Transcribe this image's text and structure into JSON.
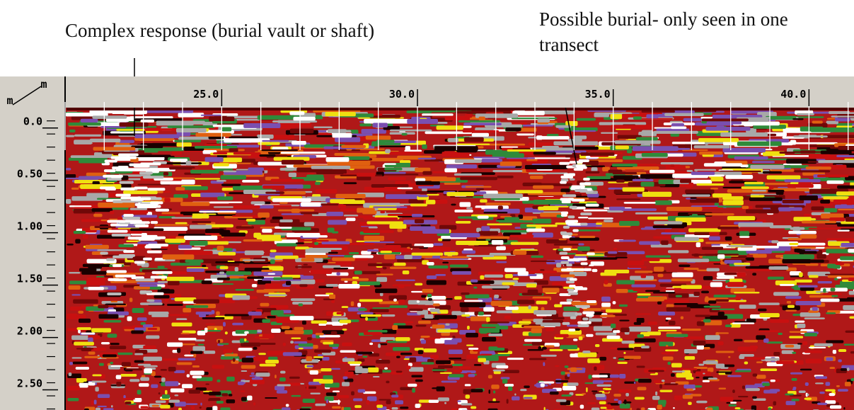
{
  "chart_data": {
    "type": "radargram",
    "x_unit": "m",
    "y_unit": "m",
    "xlim": [
      21,
      41.15
    ],
    "xticks": [
      {
        "value": 25,
        "label": "25.0"
      },
      {
        "value": 30,
        "label": "30.0"
      },
      {
        "value": 35,
        "label": "35.0"
      },
      {
        "value": 40,
        "label": "40.0"
      }
    ],
    "ylim": [
      -0.14,
      2.76
    ],
    "yticks": [
      {
        "value": 0,
        "label": "0.0"
      },
      {
        "value": 0.5,
        "label": "0.50"
      },
      {
        "value": 1,
        "label": "1.00"
      },
      {
        "value": 1.5,
        "label": "1.50"
      },
      {
        "value": 2,
        "label": "2.00"
      },
      {
        "value": 2.5,
        "label": "2.50"
      }
    ],
    "annotations": [
      "Complex response (burial vault or shaft)",
      "Possible burial- only seen in one",
      "transect"
    ]
  }
}
